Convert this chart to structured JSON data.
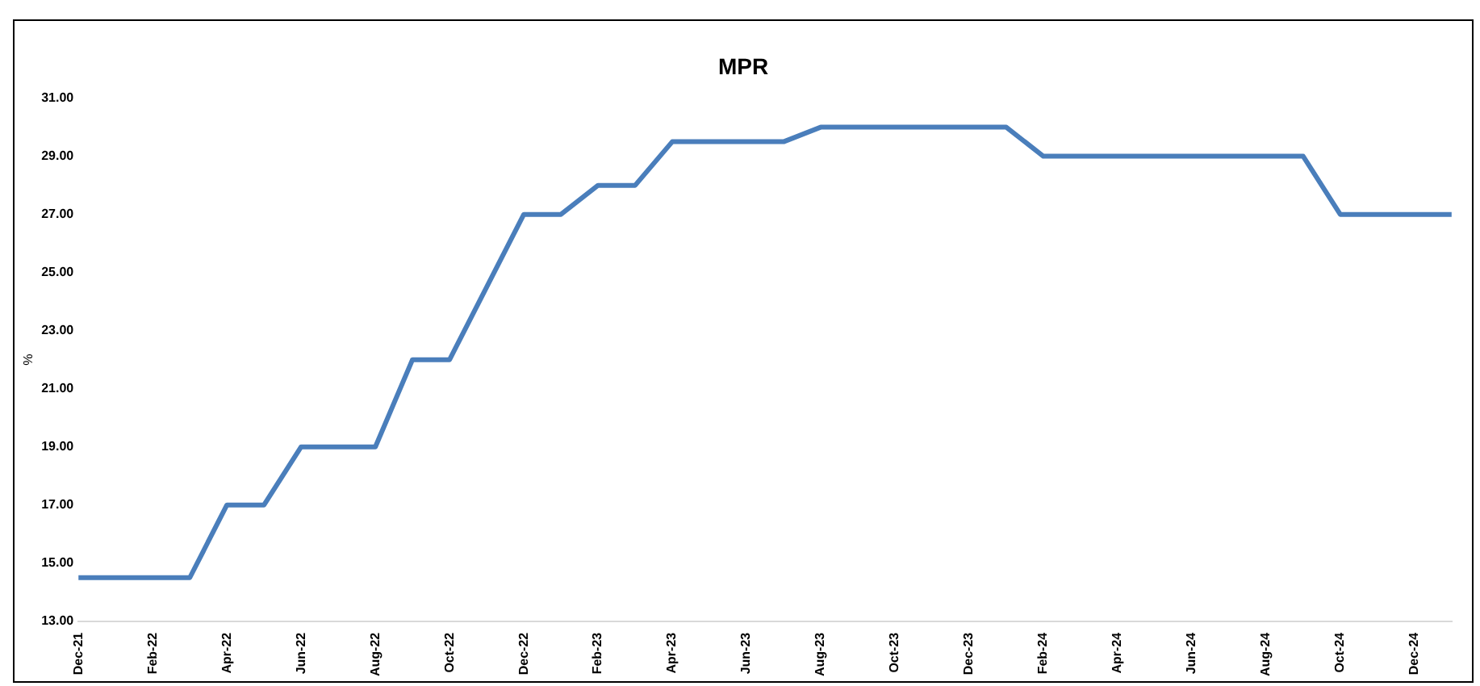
{
  "chart_data": {
    "type": "line",
    "title": "MPR",
    "ylabel": "%",
    "categories": [
      "Dec-21",
      null,
      "Feb-22",
      null,
      "Apr-22",
      null,
      "Jun-22",
      null,
      "Aug-22",
      null,
      "Oct-22",
      null,
      "Dec-22",
      null,
      "Feb-23",
      null,
      "Apr-23",
      null,
      "Jun-23",
      null,
      "Aug-23",
      null,
      "Oct-23",
      null,
      "Dec-23",
      null,
      "Feb-24",
      null,
      "Apr-24",
      null,
      "Jun-24",
      null,
      "Aug-24",
      null,
      "Oct-24",
      null,
      "Dec-24",
      null
    ],
    "series": [
      {
        "color": "#4a7ebb",
        "values": [
          14.5,
          14.5,
          14.5,
          14.5,
          17,
          17,
          19,
          19,
          19,
          22,
          22,
          24.5,
          27,
          27,
          28,
          28,
          29.5,
          29.5,
          29.5,
          29.5,
          30,
          30,
          30,
          30,
          30,
          30,
          29,
          29,
          29,
          29,
          29,
          29,
          29,
          29,
          27,
          27,
          27,
          27
        ]
      }
    ],
    "ylim": [
      13,
      31
    ],
    "yticks": [
      {
        "value": 13,
        "label": "13.00"
      },
      {
        "value": 15,
        "label": "15.00"
      },
      {
        "value": 17,
        "label": "17.00"
      },
      {
        "value": 19,
        "label": "19.00"
      },
      {
        "value": 21,
        "label": "21.00"
      },
      {
        "value": 23,
        "label": "23.00"
      },
      {
        "value": 25,
        "label": "25.00"
      },
      {
        "value": 27,
        "label": "27.00"
      },
      {
        "value": 29,
        "label": "29.00"
      },
      {
        "value": 31,
        "label": "31.00"
      }
    ],
    "grid": false,
    "legend": false,
    "marker": "none",
    "line_style": "solid"
  }
}
